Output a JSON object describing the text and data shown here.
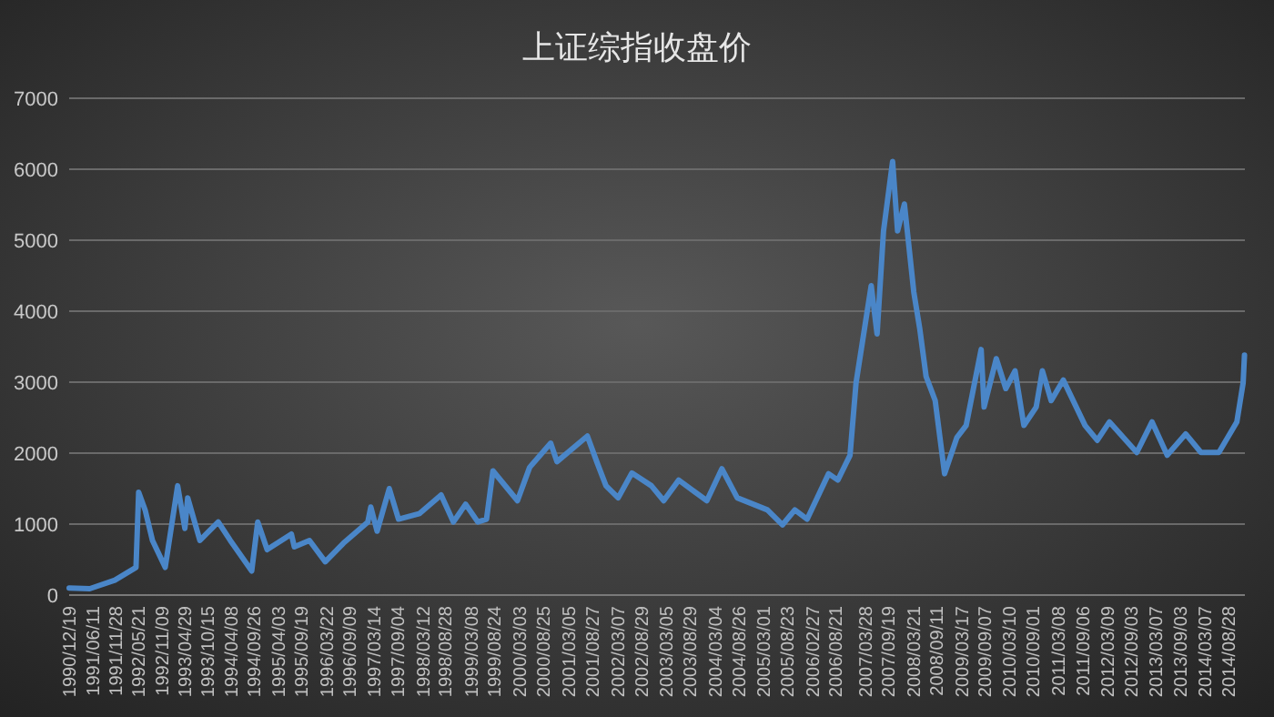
{
  "chart_data": {
    "type": "line",
    "title": "上证综指收盘价",
    "xlim": [
      "1990-12-19",
      "2014-12-31"
    ],
    "ylim": [
      0,
      7000
    ],
    "yticks": [
      0,
      1000,
      2000,
      3000,
      4000,
      5000,
      6000,
      7000
    ],
    "grid": "y",
    "marker": "none",
    "line_style": "solid",
    "xticks": [
      {
        "value": "1990-12-19",
        "label": "1990/12/19"
      },
      {
        "value": "1991-06-11",
        "label": "1991/06/11"
      },
      {
        "value": "1991-11-28",
        "label": "1991/11/28"
      },
      {
        "value": "1992-05-21",
        "label": "1992/05/21"
      },
      {
        "value": "1992-11-09",
        "label": "1992/11/09"
      },
      {
        "value": "1993-04-29",
        "label": "1993/04/29"
      },
      {
        "value": "1993-10-15",
        "label": "1993/10/15"
      },
      {
        "value": "1994-04-08",
        "label": "1994/04/08"
      },
      {
        "value": "1994-09-26",
        "label": "1994/09/26"
      },
      {
        "value": "1995-04-03",
        "label": "1995/04/03"
      },
      {
        "value": "1995-09-19",
        "label": "1995/09/19"
      },
      {
        "value": "1996-03-22",
        "label": "1996/03/22"
      },
      {
        "value": "1996-09-09",
        "label": "1996/09/09"
      },
      {
        "value": "1997-03-14",
        "label": "1997/03/14"
      },
      {
        "value": "1997-09-04",
        "label": "1997/09/04"
      },
      {
        "value": "1998-03-12",
        "label": "1998/03/12"
      },
      {
        "value": "1998-08-28",
        "label": "1998/08/28"
      },
      {
        "value": "1999-03-08",
        "label": "1999/03/08"
      },
      {
        "value": "1999-08-24",
        "label": "1999/08/24"
      },
      {
        "value": "2000-03-03",
        "label": "2000/03/03"
      },
      {
        "value": "2000-08-25",
        "label": "2000/08/25"
      },
      {
        "value": "2001-03-05",
        "label": "2001/03/05"
      },
      {
        "value": "2001-08-27",
        "label": "2001/08/27"
      },
      {
        "value": "2002-03-07",
        "label": "2002/03/07"
      },
      {
        "value": "2002-08-29",
        "label": "2002/08/29"
      },
      {
        "value": "2003-03-05",
        "label": "2003/03/05"
      },
      {
        "value": "2003-08-29",
        "label": "2003/08/29"
      },
      {
        "value": "2004-03-04",
        "label": "2004/03/04"
      },
      {
        "value": "2004-08-26",
        "label": "2004/08/26"
      },
      {
        "value": "2005-03-01",
        "label": "2005/03/01"
      },
      {
        "value": "2005-08-23",
        "label": "2005/08/23"
      },
      {
        "value": "2006-02-27",
        "label": "2006/02/27"
      },
      {
        "value": "2006-08-21",
        "label": "2006/08/21"
      },
      {
        "value": "2007-03-28",
        "label": "2007/03/28"
      },
      {
        "value": "2007-09-19",
        "label": "2007/09/19"
      },
      {
        "value": "2008-03-21",
        "label": "2008/03/21"
      },
      {
        "value": "2008-09-11",
        "label": "2008/09/11"
      },
      {
        "value": "2009-03-17",
        "label": "2009/03/17"
      },
      {
        "value": "2009-09-07",
        "label": "2009/09/07"
      },
      {
        "value": "2010-03-10",
        "label": "2010/03/10"
      },
      {
        "value": "2010-09-01",
        "label": "2010/09/01"
      },
      {
        "value": "2011-03-08",
        "label": "2011/03/08"
      },
      {
        "value": "2011-09-06",
        "label": "2011/09/06"
      },
      {
        "value": "2012-03-09",
        "label": "2012/03/09"
      },
      {
        "value": "2012-09-03",
        "label": "2012/09/03"
      },
      {
        "value": "2013-03-07",
        "label": "2013/03/07"
      },
      {
        "value": "2013-09-03",
        "label": "2013/09/03"
      },
      {
        "value": "2014-03-07",
        "label": "2014/03/07"
      },
      {
        "value": "2014-08-28",
        "label": "2014/08/28"
      }
    ],
    "series": [
      {
        "color": "#4a86c8",
        "x": [
          "1990-12-19",
          "1991-05-22",
          "1991-11-25",
          "1992-05-01",
          "1992-05-21",
          "1992-07-08",
          "1992-09-01",
          "1992-12-05",
          "1993-03-08",
          "1993-05-01",
          "1993-05-22",
          "1993-08-21",
          "1994-01-05",
          "1994-04-05",
          "1994-09-12",
          "1994-10-27",
          "1995-01-05",
          "1995-07-05",
          "1995-07-27",
          "1995-11-17",
          "1996-03-14",
          "1996-07-27",
          "1997-01-26",
          "1997-02-17",
          "1997-04-05",
          "1997-07-05",
          "1997-09-12",
          "1998-02-17",
          "1998-07-27",
          "1998-10-27",
          "1999-01-26",
          "1999-04-27",
          "1999-07-01",
          "1999-08-18",
          "2000-02-17",
          "2000-05-18",
          "2000-10-22",
          "2000-12-08",
          "2001-07-23",
          "2001-10-01",
          "2001-12-09",
          "2002-03-10",
          "2002-06-20",
          "2002-11-13",
          "2003-02-13",
          "2003-06-05",
          "2004-01-01",
          "2004-04-22",
          "2004-08-15",
          "2005-03-28",
          "2005-07-19",
          "2005-10-19",
          "2006-01-19",
          "2006-06-28",
          "2006-09-05",
          "2006-12-05",
          "2007-01-19",
          "2007-05-12",
          "2007-06-25",
          "2007-08-12",
          "2007-10-19",
          "2007-11-25",
          "2008-01-15",
          "2008-03-25",
          "2008-05-08",
          "2008-06-25",
          "2008-09-01",
          "2008-11-10",
          "2009-02-10",
          "2009-04-20",
          "2009-08-10",
          "2009-09-01",
          "2009-12-01",
          "2010-02-10",
          "2010-04-20",
          "2010-06-25",
          "2010-09-25",
          "2010-11-10",
          "2011-01-15",
          "2011-04-15",
          "2011-09-25",
          "2011-12-25",
          "2012-03-25",
          "2012-10-15",
          "2013-02-06",
          "2013-05-30",
          "2013-10-15",
          "2014-02-06",
          "2014-06-20",
          "2014-11-01",
          "2014-12-18",
          "2014-12-28"
        ],
        "values": [
          100,
          90,
          210,
          390,
          1450,
          1200,
          770,
          390,
          1540,
          940,
          1370,
          770,
          1030,
          770,
          340,
          1030,
          640,
          860,
          680,
          770,
          470,
          730,
          1030,
          1240,
          900,
          1500,
          1070,
          1150,
          1410,
          1030,
          1280,
          1030,
          1070,
          1750,
          1330,
          1800,
          2140,
          1880,
          2240,
          1880,
          1540,
          1370,
          1720,
          1540,
          1330,
          1620,
          1330,
          1780,
          1370,
          1200,
          990,
          1200,
          1070,
          1710,
          1620,
          1970,
          2990,
          4360,
          3680,
          5130,
          6110,
          5130,
          5510,
          4270,
          3760,
          3080,
          2740,
          1710,
          2220,
          2390,
          3460,
          2650,
          3330,
          2910,
          3160,
          2390,
          2650,
          3160,
          2740,
          3030,
          2390,
          2180,
          2440,
          2010,
          2440,
          1970,
          2270,
          2010,
          2010,
          2440,
          2990,
          3380
        ]
      }
    ]
  }
}
